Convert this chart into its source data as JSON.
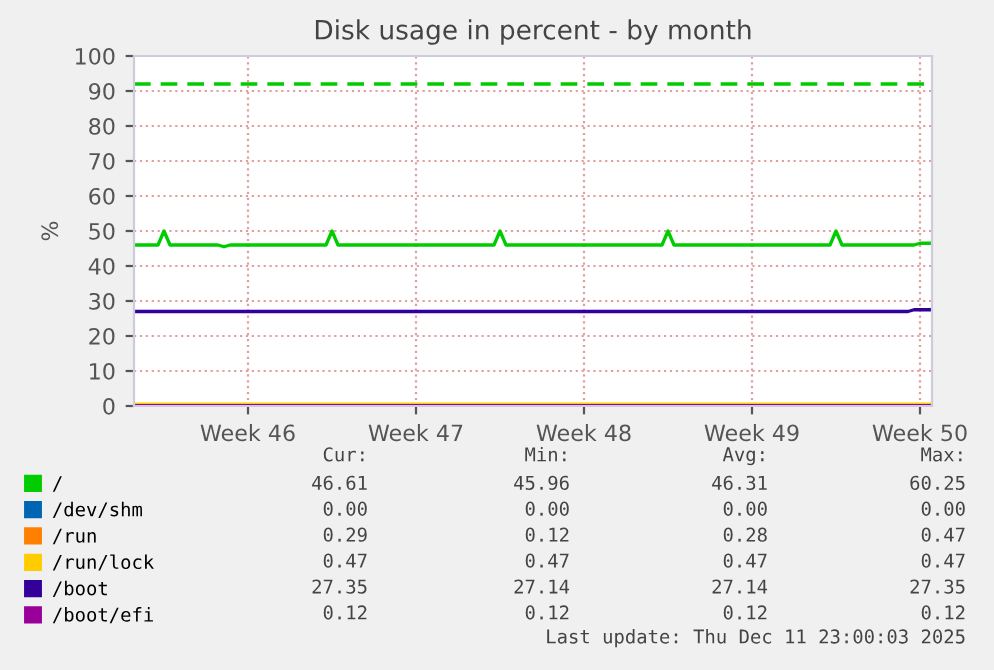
{
  "chart_data": {
    "type": "line",
    "title": "Disk usage in percent - by month",
    "ylabel": "%",
    "categories": [
      null,
      null,
      null,
      null,
      null,
      null,
      null,
      null,
      null,
      null,
      null,
      null,
      null,
      null,
      null,
      null,
      null,
      null,
      null,
      "Week 46",
      null,
      null,
      null,
      null,
      null,
      null,
      null,
      null,
      null,
      null,
      null,
      null,
      null,
      null,
      null,
      null,
      null,
      null,
      null,
      null,
      null,
      null,
      null,
      null,
      null,
      null,
      null,
      "Week 47",
      null,
      null,
      null,
      null,
      null,
      null,
      null,
      null,
      null,
      null,
      null,
      null,
      null,
      null,
      null,
      null,
      null,
      null,
      null,
      null,
      null,
      null,
      null,
      null,
      null,
      null,
      null,
      "Week 48",
      null,
      null,
      null,
      null,
      null,
      null,
      null,
      null,
      null,
      null,
      null,
      null,
      null,
      null,
      null,
      null,
      null,
      null,
      null,
      null,
      null,
      null,
      null,
      null,
      null,
      null,
      null,
      "Week 49",
      null,
      null,
      null,
      null,
      null,
      null,
      null,
      null,
      null,
      null,
      null,
      null,
      null,
      null,
      null,
      null,
      null,
      null,
      null,
      null,
      null,
      null,
      null,
      null,
      null,
      null,
      null,
      "Week 50",
      null,
      null
    ],
    "ylim": [
      0,
      100
    ],
    "yticks": [
      0,
      10,
      20,
      30,
      40,
      50,
      60,
      70,
      80,
      90,
      100
    ],
    "grid": true,
    "legend": "bottom",
    "marker": "none",
    "line_style": "solid",
    "series": [
      {
        "name": "/",
        "color": "#00cc00",
        "values": [
          46,
          46,
          46,
          46,
          46,
          50,
          46,
          46,
          46,
          46,
          46,
          46,
          46,
          46,
          46,
          45.5,
          46,
          46,
          46,
          46,
          46,
          46,
          46,
          46,
          46,
          46,
          46,
          46,
          46,
          46,
          46,
          46,
          46,
          50,
          46,
          46,
          46,
          46,
          46,
          46,
          46,
          46,
          46,
          46,
          46,
          46,
          46,
          46,
          46,
          46,
          46,
          46,
          46,
          46,
          46,
          46,
          46,
          46,
          46,
          46,
          46,
          50,
          46,
          46,
          46,
          46,
          46,
          46,
          46,
          46,
          46,
          46,
          46,
          46,
          46,
          46,
          46,
          46,
          46,
          46,
          46,
          46,
          46,
          46,
          46,
          46,
          46,
          46,
          46,
          50,
          46,
          46,
          46,
          46,
          46,
          46,
          46,
          46,
          46,
          46,
          46,
          46,
          46,
          46,
          46,
          46,
          46,
          46,
          46,
          46,
          46,
          46,
          46,
          46,
          46,
          46,
          46,
          50,
          46,
          46,
          46,
          46,
          46,
          46,
          46,
          46,
          46,
          46,
          46,
          46,
          46,
          46.5,
          46.5,
          46.5
        ]
      },
      {
        "name": "/dev/shm",
        "color": "#0066b3",
        "values": [
          null,
          null,
          null,
          null,
          null,
          null,
          null,
          null,
          null,
          null,
          null,
          null,
          null,
          null,
          null,
          null,
          null,
          null,
          null,
          null,
          null,
          null,
          null,
          null,
          null,
          null,
          null,
          null,
          null,
          null,
          null,
          null,
          null,
          null,
          null,
          null,
          null,
          null,
          null,
          null,
          null,
          null,
          null,
          null,
          null,
          null,
          null,
          null,
          null,
          null,
          null,
          null,
          null,
          null,
          null,
          null,
          null,
          null,
          null,
          null,
          null,
          null,
          null,
          null,
          null,
          null,
          null,
          null,
          null,
          null,
          null,
          null,
          null,
          null,
          null,
          null,
          null,
          null,
          null,
          null,
          null,
          null,
          null,
          null,
          null,
          null,
          null,
          null,
          null,
          null,
          null,
          null,
          null,
          null,
          null,
          null,
          null,
          null,
          null,
          null,
          null,
          null,
          null,
          null,
          null,
          null,
          null,
          null,
          null,
          null,
          null,
          null,
          null,
          null,
          null,
          null,
          null,
          null,
          null,
          null,
          null,
          null,
          null,
          null,
          null,
          null,
          null,
          null,
          null,
          null,
          null,
          null,
          null,
          null
        ]
      },
      {
        "name": "/run",
        "color": "#ff8000",
        "values": [
          null,
          null,
          null,
          null,
          null,
          null,
          null,
          null,
          null,
          null,
          null,
          null,
          null,
          null,
          null,
          null,
          null,
          null,
          null,
          null,
          null,
          null,
          null,
          null,
          null,
          null,
          null,
          null,
          null,
          null,
          null,
          null,
          null,
          null,
          null,
          null,
          null,
          null,
          null,
          null,
          null,
          null,
          null,
          null,
          null,
          null,
          null,
          null,
          null,
          null,
          null,
          null,
          null,
          null,
          null,
          null,
          null,
          null,
          null,
          null,
          null,
          null,
          null,
          null,
          null,
          null,
          null,
          null,
          null,
          null,
          null,
          null,
          null,
          null,
          null,
          null,
          null,
          null,
          null,
          null,
          null,
          null,
          null,
          null,
          null,
          null,
          null,
          null,
          null,
          null,
          null,
          null,
          null,
          null,
          null,
          null,
          null,
          null,
          null,
          null,
          null,
          null,
          null,
          null,
          null,
          null,
          null,
          null,
          null,
          null,
          null,
          null,
          null,
          null,
          null,
          null,
          null,
          null,
          null,
          null,
          null,
          null,
          null,
          null,
          null,
          null,
          null,
          null,
          null,
          null,
          null,
          null,
          null,
          null
        ]
      },
      {
        "name": "/run/lock",
        "color": "#ffcc00",
        "values": [
          0.5,
          0.5,
          0.5,
          0.5,
          0.5,
          0.5,
          0.5,
          0.5,
          0.5,
          0.5,
          0.5,
          0.5,
          0.5,
          0.5,
          0.5,
          0.5,
          0.5,
          0.5,
          0.5,
          0.5,
          0.5,
          0.5,
          0.5,
          0.5,
          0.5,
          0.5,
          0.5,
          0.5,
          0.5,
          0.5,
          0.5,
          0.5,
          0.5,
          0.5,
          0.5,
          0.5,
          0.5,
          0.5,
          0.5,
          0.5,
          0.5,
          0.5,
          0.5,
          0.5,
          0.5,
          0.5,
          0.5,
          0.5,
          0.5,
          0.5,
          0.5,
          0.5,
          0.5,
          0.5,
          0.5,
          0.5,
          0.5,
          0.5,
          0.5,
          0.5,
          0.5,
          0.5,
          0.5,
          0.5,
          0.5,
          0.5,
          0.5,
          0.5,
          0.5,
          0.5,
          0.5,
          0.5,
          0.5,
          0.5,
          0.5,
          0.5,
          0.5,
          0.5,
          0.5,
          0.5,
          0.5,
          0.5,
          0.5,
          0.5,
          0.5,
          0.5,
          0.5,
          0.5,
          0.5,
          0.5,
          0.5,
          0.5,
          0.5,
          0.5,
          0.5,
          0.5,
          0.5,
          0.5,
          0.5,
          0.5,
          0.5,
          0.5,
          0.5,
          0.5,
          0.5,
          0.5,
          0.5,
          0.5,
          0.5,
          0.5,
          0.5,
          0.5,
          0.5,
          0.5,
          0.5,
          0.5,
          0.5,
          0.5,
          0.5,
          0.5,
          0.5,
          0.5,
          0.5,
          0.5,
          0.5,
          0.5,
          0.5,
          0.5,
          0.5,
          0.5,
          0.5,
          0.5,
          0.5,
          0.5
        ]
      },
      {
        "name": "/boot",
        "color": "#330099",
        "values": [
          27,
          27,
          27,
          27,
          27,
          27,
          27,
          27,
          27,
          27,
          27,
          27,
          27,
          27,
          27,
          27,
          27,
          27,
          27,
          27,
          27,
          27,
          27,
          27,
          27,
          27,
          27,
          27,
          27,
          27,
          27,
          27,
          27,
          27,
          27,
          27,
          27,
          27,
          27,
          27,
          27,
          27,
          27,
          27,
          27,
          27,
          27,
          27,
          27,
          27,
          27,
          27,
          27,
          27,
          27,
          27,
          27,
          27,
          27,
          27,
          27,
          27,
          27,
          27,
          27,
          27,
          27,
          27,
          27,
          27,
          27,
          27,
          27,
          27,
          27,
          27,
          27,
          27,
          27,
          27,
          27,
          27,
          27,
          27,
          27,
          27,
          27,
          27,
          27,
          27,
          27,
          27,
          27,
          27,
          27,
          27,
          27,
          27,
          27,
          27,
          27,
          27,
          27,
          27,
          27,
          27,
          27,
          27,
          27,
          27,
          27,
          27,
          27,
          27,
          27,
          27,
          27,
          27,
          27,
          27,
          27,
          27,
          27,
          27,
          27,
          27,
          27,
          27,
          27,
          27,
          27.5,
          27.5,
          27.5,
          27.5
        ]
      },
      {
        "name": "/boot/efi",
        "color": "#990099",
        "values": [
          0.1,
          0.1,
          0.1,
          0.1,
          0.1,
          0.1,
          0.1,
          0.1,
          0.1,
          0.1,
          0.1,
          0.1,
          0.1,
          0.1,
          0.1,
          0.1,
          0.1,
          0.1,
          0.1,
          0.1,
          0.1,
          0.1,
          0.1,
          0.1,
          0.1,
          0.1,
          0.1,
          0.1,
          0.1,
          0.1,
          0.1,
          0.1,
          0.1,
          0.1,
          0.1,
          0.1,
          0.1,
          0.1,
          0.1,
          0.1,
          0.1,
          0.1,
          0.1,
          0.1,
          0.1,
          0.1,
          0.1,
          0.1,
          0.1,
          0.1,
          0.1,
          0.1,
          0.1,
          0.1,
          0.1,
          0.1,
          0.1,
          0.1,
          0.1,
          0.1,
          0.1,
          0.1,
          0.1,
          0.1,
          0.1,
          0.1,
          0.1,
          0.1,
          0.1,
          0.1,
          0.1,
          0.1,
          0.1,
          0.1,
          0.1,
          0.1,
          0.1,
          0.1,
          0.1,
          0.1,
          0.1,
          0.1,
          0.1,
          0.1,
          0.1,
          0.1,
          0.1,
          0.1,
          0.1,
          0.1,
          0.1,
          0.1,
          0.1,
          0.1,
          0.1,
          0.1,
          0.1,
          0.1,
          0.1,
          0.1,
          0.1,
          0.1,
          0.1,
          0.1,
          0.1,
          0.1,
          0.1,
          0.1,
          0.1,
          0.1,
          0.1,
          0.1,
          0.1,
          0.1,
          0.1,
          0.1,
          0.1,
          0.1,
          0.1,
          0.1,
          0.1,
          0.1,
          0.1,
          0.1,
          0.1,
          0.1,
          0.1,
          0.1,
          0.1,
          0.1,
          0.1,
          0.1,
          0.1,
          0.1
        ]
      }
    ],
    "ref_lines": [
      {
        "axis": "y",
        "value": 92,
        "color": "#00cc00",
        "line_style": "dashed"
      }
    ],
    "annotations": [
      "Cur:",
      "Min:",
      "Avg:",
      "Max:",
      "46.61",
      "45.96",
      "46.31",
      "60.25",
      "0.00",
      "0.00",
      "0.00",
      "0.00",
      "0.29",
      "0.12",
      "0.28",
      "0.47",
      "0.47",
      "0.47",
      "0.47",
      "0.47",
      "27.35",
      "27.14",
      "27.14",
      "27.35",
      "0.12",
      "0.12",
      "0.12",
      "0.12",
      "Last update: Thu Dec 11 23:00:03 2025"
    ]
  }
}
